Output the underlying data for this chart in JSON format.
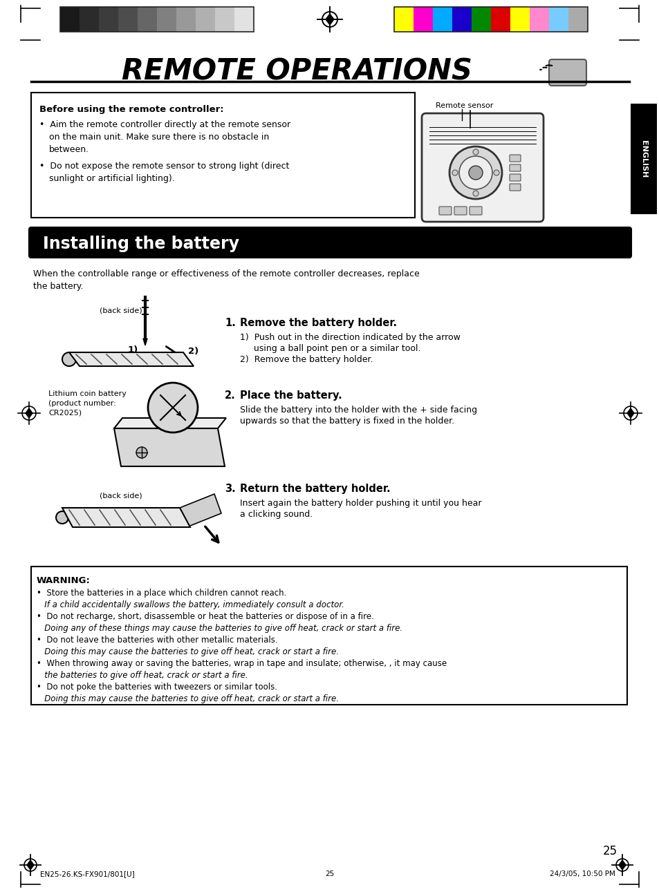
{
  "page_bg": "#ffffff",
  "title": "REMOTE OPERATIONS",
  "title_fontsize": 30,
  "title_fontstyle": "italic",
  "title_fontweight": "bold",
  "section_title": "Installing the battery",
  "section_title_fontsize": 17,
  "section_title_fontweight": "bold",
  "intro_text1": "When the controllable range or effectiveness of the remote controller decreases, replace",
  "intro_text2": "the battery.",
  "remote_box_line1": "Before using the remote controller:",
  "remote_box_line2": "•  Aim the remote controller directly at the remote sensor on the main unit. Make sure there is no obstacle in between.",
  "remote_box_line3": "•  Do not expose the remote sensor to strong light (direct sunlight or artificial lighting).",
  "step1_title": "Remove the battery holder.",
  "step1_sub1": "1)  Push out in the direction indicated by the arrow",
  "step1_sub1b": "     using a ball point pen or a similar tool.",
  "step1_sub2": "2)  Remove the battery holder.",
  "step2_title": "Place the battery.",
  "step2_sub1": "Slide the battery into the holder with the + side facing",
  "step2_sub2": "upwards so that the battery is fixed in the holder.",
  "step3_title": "Return the battery holder.",
  "step3_sub1": "Insert again the battery holder pushing it until you hear",
  "step3_sub2": "a clicking sound.",
  "warning_title": "WARNING:",
  "warning_lines": [
    "•  Store the batteries in a place which children cannot reach.",
    "   If a child accidentally swallows the battery, immediately consult a doctor.",
    "•  Do not recharge, short, disassemble or heat the batteries or dispose of in a fire.",
    "   Doing any of these things may cause the batteries to give off heat, crack or start a fire.",
    "•  Do not leave the batteries with other metallic materials.",
    "   Doing this may cause the batteries to give off heat, crack or start a fire.",
    "•  When throwing away or saving the batteries, wrap in tape and insulate; otherwise, , it may cause",
    "   the batteries to give off heat, crack or start a fire.",
    "•  Do not poke the batteries with tweezers or similar tools.",
    "   Doing this may cause the batteries to give off heat, crack or start a fire."
  ],
  "page_num": "25",
  "footer_left": "EN25-26.KS-FX901/801[U]",
  "footer_center": "25",
  "footer_right": "24/3/05, 10:50 PM",
  "color_strip_dark": [
    "#1a1a1a",
    "#2b2b2b",
    "#3c3c3c",
    "#4d4d4d",
    "#666666",
    "#808080",
    "#999999",
    "#b0b0b0",
    "#c8c8c8",
    "#e2e2e2"
  ],
  "color_strip_bright": [
    "#ffff00",
    "#ff00cc",
    "#00aaff",
    "#1a00cc",
    "#008800",
    "#dd0000",
    "#ffff00",
    "#ff88cc",
    "#77ccff",
    "#aaaaaa"
  ],
  "english_label": "ENGLISH",
  "remote_sensor_label": "Remote sensor",
  "back_side_label": "(back side)",
  "battery_label1": "Lithium coin battery",
  "battery_label2": "(product number:",
  "battery_label3": "CR2025)"
}
